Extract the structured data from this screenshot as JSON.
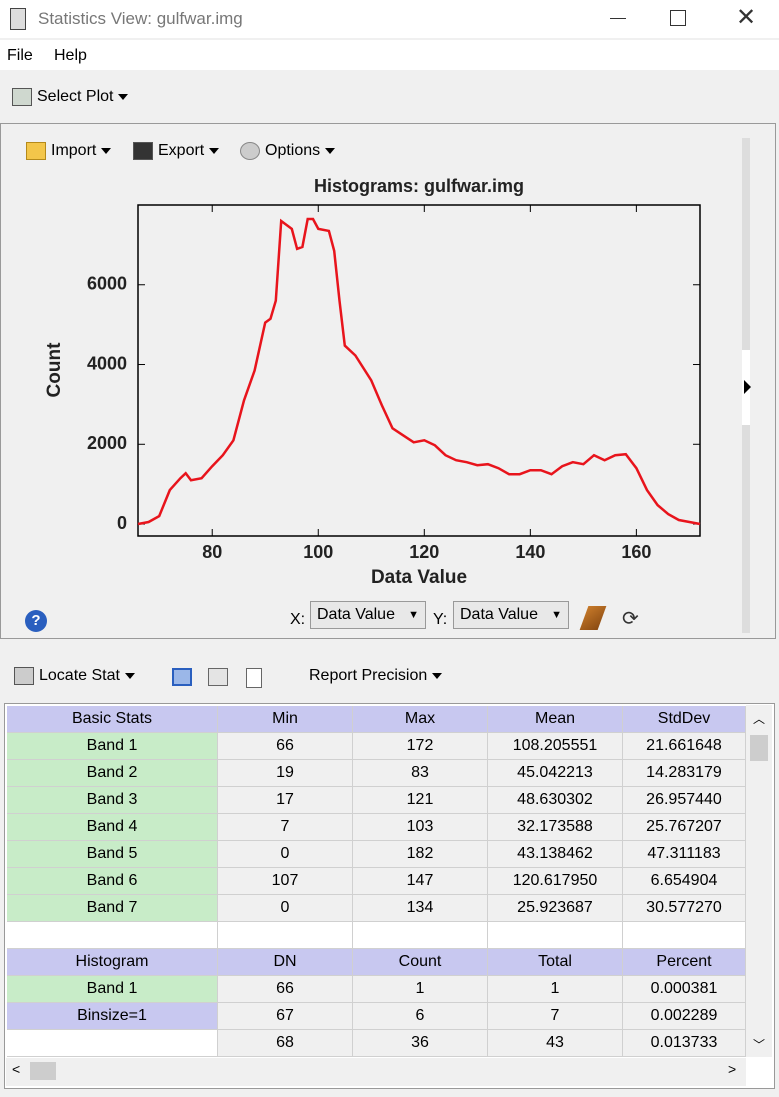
{
  "window": {
    "title": "Statistics View: gulfwar.img"
  },
  "menu": [
    "File",
    "Help"
  ],
  "main_toolbar": {
    "select_plot": "Select Plot"
  },
  "plot_toolbar": [
    "Import",
    "Export",
    "Options"
  ],
  "chart_data": {
    "type": "line",
    "title": "Histograms: gulfwar.img",
    "x_label": "Data Value",
    "y_label": "Count",
    "x": [
      66,
      68,
      70,
      72,
      74,
      75,
      76,
      78,
      80,
      82,
      84,
      86,
      88,
      90,
      91,
      92,
      93,
      95,
      96,
      97,
      98,
      99,
      100,
      102,
      103,
      104,
      105,
      107,
      110,
      112,
      114,
      116,
      118,
      120,
      122,
      124,
      126,
      128,
      130,
      132,
      134,
      136,
      138,
      140,
      142,
      144,
      146,
      148,
      150,
      152,
      154,
      156,
      158,
      160,
      162,
      164,
      166,
      168,
      170,
      172
    ],
    "values": [
      0,
      50,
      200,
      850,
      1150,
      1275,
      1100,
      1150,
      1450,
      1725,
      2100,
      3100,
      3850,
      5050,
      5150,
      5600,
      7600,
      7400,
      6900,
      6950,
      7650,
      7650,
      7400,
      7350,
      6850,
      5600,
      4475,
      4225,
      3600,
      2975,
      2400,
      2225,
      2050,
      2100,
      1975,
      1725,
      1600,
      1550,
      1475,
      1500,
      1400,
      1250,
      1250,
      1350,
      1350,
      1250,
      1450,
      1550,
      1500,
      1725,
      1600,
      1725,
      1750,
      1400,
      850,
      475,
      250,
      100,
      50,
      0
    ],
    "color": "#e8141c",
    "xlim": [
      66,
      172
    ],
    "ylim": [
      -300,
      8000
    ],
    "xticks": [
      80,
      100,
      120,
      140,
      160
    ],
    "yticks": [
      0,
      2000,
      4000,
      6000
    ]
  },
  "plot_controls": {
    "x_label": "X:",
    "x_value": "Data Value",
    "y_label": "Y:",
    "y_value": "Data Value"
  },
  "stats_toolbar": {
    "locate_stat": "Locate Stat",
    "report_precision": "Report Precision"
  },
  "stats_table": {
    "header": [
      "Basic Stats",
      "Min",
      "Max",
      "Mean",
      "StdDev"
    ],
    "rows": [
      [
        "Band 1",
        "66",
        "172",
        "108.205551",
        "21.661648"
      ],
      [
        "Band 2",
        "19",
        "83",
        "45.042213",
        "14.283179"
      ],
      [
        "Band 3",
        "17",
        "121",
        "48.630302",
        "26.957440"
      ],
      [
        "Band 4",
        "7",
        "103",
        "32.173588",
        "25.767207"
      ],
      [
        "Band 5",
        "0",
        "182",
        "43.138462",
        "47.311183"
      ],
      [
        "Band 6",
        "107",
        "147",
        "120.617950",
        "6.654904"
      ],
      [
        "Band 7",
        "0",
        "134",
        "25.923687",
        "30.577270"
      ]
    ]
  },
  "histogram_table": {
    "header": [
      "Histogram",
      "DN",
      "Count",
      "Total",
      "Percent"
    ],
    "rows": [
      [
        "Band 1",
        "66",
        "1",
        "1",
        "0.000381"
      ],
      [
        "Binsize=1",
        "67",
        "6",
        "7",
        "0.002289"
      ],
      [
        null,
        "68",
        "36",
        "43",
        "0.013733"
      ]
    ]
  }
}
